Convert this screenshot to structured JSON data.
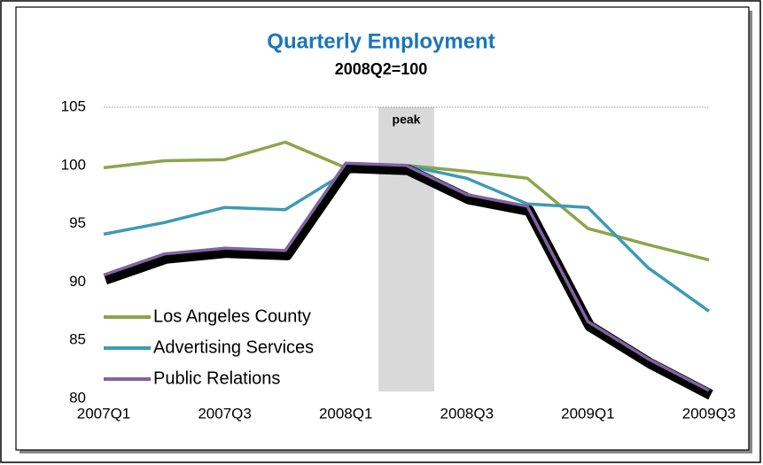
{
  "chart_data": {
    "type": "line",
    "title": "Quarterly Employment",
    "subtitle": "2008Q2=100",
    "categories": [
      "2007Q1",
      null,
      "2007Q3",
      null,
      "2008Q1",
      null,
      "2008Q3",
      null,
      "2009Q1",
      null,
      "2009Q3"
    ],
    "series": [
      {
        "name": "Los Angeles County",
        "color": "#8aa64a",
        "values": [
          99.8,
          100.4,
          100.5,
          102.0,
          99.8,
          100,
          99.5,
          98.9,
          94.6,
          93.2,
          91.9
        ]
      },
      {
        "name": "Advertising Services",
        "color": "#3c9bb3",
        "values": [
          94.1,
          95.1,
          96.4,
          96.2,
          99.4,
          100,
          98.9,
          96.7,
          96.4,
          91.2,
          87.5
        ]
      },
      {
        "name": "Public Relations",
        "color": "#8064a2",
        "values": [
          90.6,
          92.4,
          92.9,
          92.7,
          100.2,
          100,
          97.5,
          96.5,
          86.6,
          83.4,
          80.7
        ]
      }
    ],
    "ylim": [
      80,
      105
    ],
    "yticks": [
      80,
      85,
      90,
      95,
      100,
      105
    ],
    "annotations": [
      {
        "text": "peak",
        "category": 5
      }
    ],
    "legend": "lower left"
  }
}
